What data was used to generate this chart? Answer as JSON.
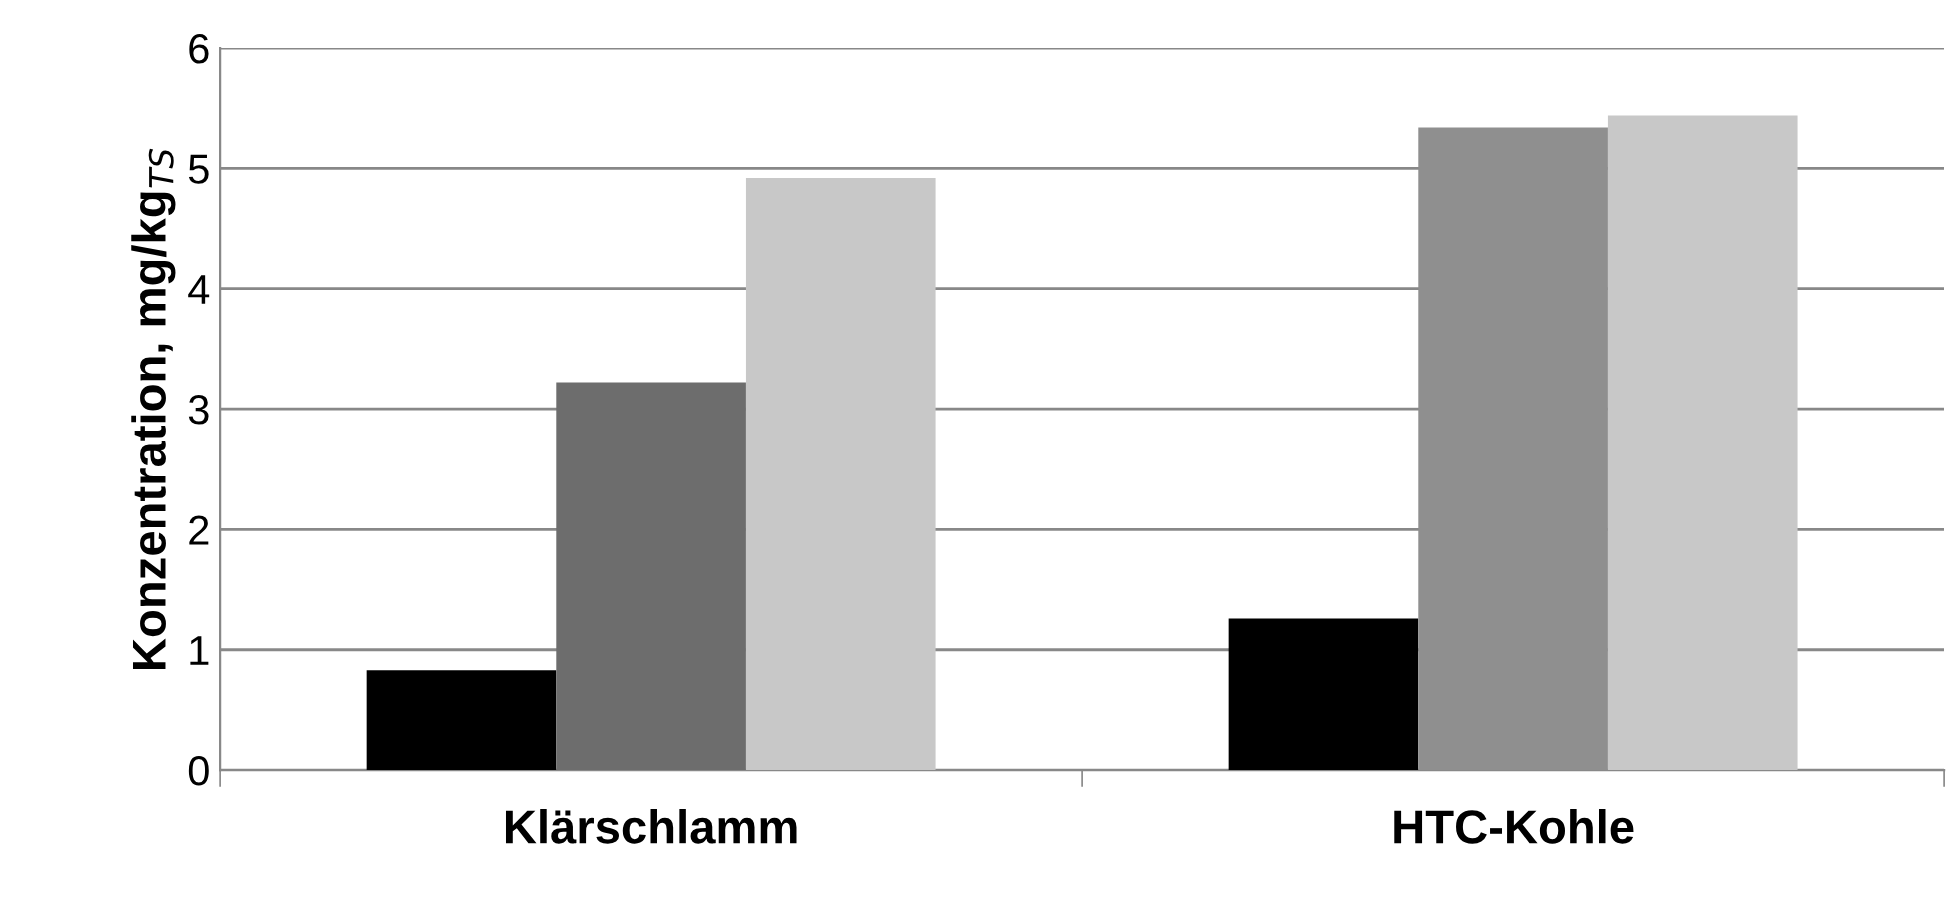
{
  "chart_data": {
    "type": "bar",
    "ylabel": "Konzentration, mg/kg$_{TS}$",
    "categories": [
      "Klärschlamm",
      "HTC-Kohle"
    ],
    "series": [
      {
        "colors": [
          "#000000",
          "#000000"
        ],
        "values": [
          0.83,
          1.26
        ]
      },
      {
        "colors": [
          "#6d6d6d",
          "#8f8f8f"
        ],
        "values": [
          3.22,
          5.34
        ]
      },
      {
        "colors": [
          "#c8c8c8",
          "#c8c8c8"
        ],
        "values": [
          4.92,
          5.44
        ]
      }
    ],
    "ylim": [
      0,
      6
    ],
    "yticks": [
      0,
      1,
      2,
      3,
      4,
      5,
      6
    ],
    "grid": "y",
    "legend": false
  }
}
